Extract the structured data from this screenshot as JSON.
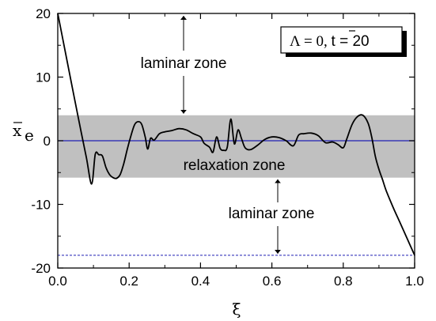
{
  "chart_data": {
    "type": "line",
    "xlabel": "ξ",
    "ylabel_main": "x",
    "ylabel_sub": "e",
    "xlim": [
      0.0,
      1.0
    ],
    "ylim": [
      -20,
      20
    ],
    "x_ticks": [
      "0.0",
      "0.2",
      "0.4",
      "0.6",
      "0.8",
      "1.0"
    ],
    "y_ticks": [
      "20",
      "10",
      "0",
      "-10",
      "-20"
    ],
    "relaxation_band": [
      -5.8,
      4.0
    ],
    "upper_bound": 20,
    "lower_bound": -18,
    "center_line": 0,
    "annotations": {
      "upper_zone": "laminar zone",
      "middle_zone": "relaxation zone",
      "lower_zone": "laminar zone",
      "params_lambda": "Λ = 0, ",
      "params_t": "t",
      "params_t_value": " = 20"
    },
    "colors": {
      "band": "#c0c0c0",
      "center_line": "#1f1fb4",
      "bound_lines": "#1f1fb4",
      "series": "#000000"
    },
    "series": [
      {
        "x": [
          0.0,
          0.02,
          0.04,
          0.06,
          0.08,
          0.095,
          0.105,
          0.115,
          0.125,
          0.135,
          0.145,
          0.155,
          0.165,
          0.175,
          0.185,
          0.195,
          0.205,
          0.215,
          0.225,
          0.235,
          0.245,
          0.252,
          0.26,
          0.27,
          0.285,
          0.3,
          0.32,
          0.34,
          0.36,
          0.38,
          0.4,
          0.41,
          0.425,
          0.435,
          0.445,
          0.455,
          0.465,
          0.475,
          0.485,
          0.495,
          0.505,
          0.515,
          0.525,
          0.54,
          0.56,
          0.58,
          0.6,
          0.62,
          0.64,
          0.66,
          0.675,
          0.69,
          0.71,
          0.73,
          0.75,
          0.77,
          0.785,
          0.8,
          0.81,
          0.825,
          0.84,
          0.855,
          0.87,
          0.88,
          0.89,
          0.9,
          0.91,
          0.92,
          0.94,
          0.96,
          0.98,
          1.0
        ],
        "y": [
          20,
          14.3,
          8.6,
          2.9,
          -2.6,
          -6.8,
          -2.1,
          -2.2,
          -2.4,
          -4.2,
          -5.3,
          -5.8,
          -5.9,
          -5.3,
          -3.6,
          -1.3,
          0.8,
          2.5,
          3.0,
          2.6,
          0.6,
          -1.3,
          0.4,
          0.1,
          1.1,
          1.4,
          1.6,
          1.9,
          1.7,
          1.1,
          0.6,
          -0.4,
          -1.0,
          -1.8,
          0.6,
          -1.2,
          -1.5,
          -1.0,
          3.4,
          -0.5,
          1.7,
          0.3,
          -1.1,
          -1.4,
          -0.7,
          0.2,
          0.6,
          0.5,
          0.0,
          -0.8,
          0.9,
          1.1,
          1.2,
          0.8,
          -0.3,
          -0.2,
          -0.6,
          -1.1,
          0.3,
          2.6,
          3.8,
          4.0,
          2.7,
          0.5,
          -2.5,
          -4.5,
          -6.1,
          -7.8,
          -10.5,
          -13.0,
          -15.5,
          -18.0
        ]
      }
    ]
  }
}
